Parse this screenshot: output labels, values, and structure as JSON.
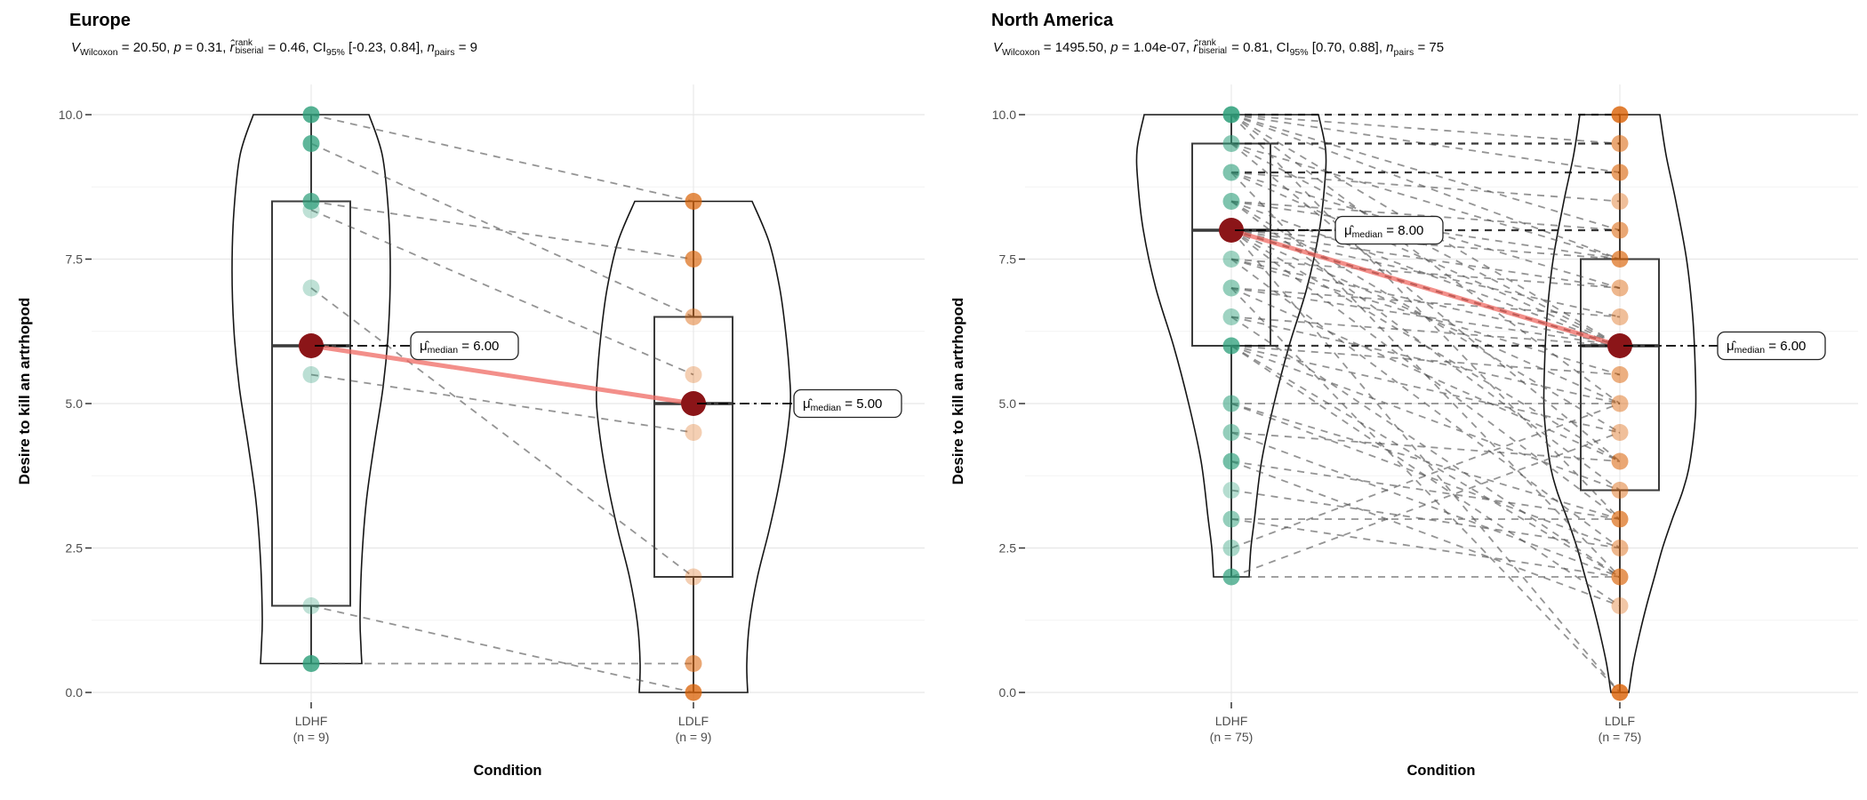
{
  "colors": {
    "group1": "#2a9d78",
    "group2": "#d95f02",
    "median_point": "#8b1518",
    "median_line": "#ef6a63",
    "pair_line": "#4d4d4d",
    "pair_line_dark": "#141414",
    "violin_outline": "#151515",
    "box_outline": "#3a3a3a",
    "grid_major": "#e7e7e7",
    "grid_minor": "#f4f4f4",
    "tick_text": "#4d4d4d",
    "connector": "#000000"
  },
  "axis": {
    "ylabel": "Desire to kill an artrhopod",
    "xlabel": "Condition",
    "yticks": [
      {
        "v": 0,
        "label": "0.0"
      },
      {
        "v": 2.5,
        "label": "2.5"
      },
      {
        "v": 5,
        "label": "5.0"
      },
      {
        "v": 7.5,
        "label": "7.5"
      },
      {
        "v": 10,
        "label": "10.0"
      }
    ],
    "yminor": [
      1.25,
      3.75,
      6.25,
      8.75
    ]
  },
  "chart_data": [
    {
      "type": "violin-box-paired",
      "title": "Europe",
      "subtitle_segments": [
        {
          "t": "V",
          "s": "i"
        },
        {
          "t": "Wilcoxon",
          "s": "sub"
        },
        {
          "t": " = 20.50, ",
          "s": "p"
        },
        {
          "t": "p",
          "s": "i"
        },
        {
          "t": " = 0.31, ",
          "s": "p"
        },
        {
          "t": "r̂",
          "s": "i"
        },
        {
          "s": "stack",
          "top": "rank",
          "bot": "biserial"
        },
        {
          "t": " = 0.46, CI",
          "s": "p"
        },
        {
          "t": "95%",
          "s": "sub"
        },
        {
          "t": " [-0.23, 0.84], ",
          "s": "p"
        },
        {
          "t": "n",
          "s": "i"
        },
        {
          "t": "pairs",
          "s": "sub"
        },
        {
          "t": " = 9",
          "s": "p"
        }
      ],
      "xlabel": "Condition",
      "ylabel": "Desire to kill an artrhopod",
      "ylim": [
        0,
        10
      ],
      "groups": [
        {
          "label": "LDHF",
          "sublabel": "(n = 9)",
          "n": 9,
          "color_key": "group1",
          "box": {
            "q1": 1.5,
            "median": 6,
            "q3": 8.5,
            "whisker_low": 0.5,
            "whisker_high": 10
          },
          "median_value": 6,
          "median_label": {
            "mu": "μ̂",
            "sub": "median",
            "value": " = 6.00"
          },
          "points": [
            [
              10,
              0.8
            ],
            [
              9.5,
              0.75
            ],
            [
              8.35,
              0.3
            ],
            [
              8.5,
              0.7
            ],
            [
              7,
              0.3
            ],
            [
              5.5,
              0.32
            ],
            [
              1.5,
              0.3
            ],
            [
              0.5,
              0.8
            ]
          ],
          "violin_profile": [
            [
              10,
              65
            ],
            [
              9.3,
              80
            ],
            [
              8.3,
              87
            ],
            [
              7.3,
              89
            ],
            [
              6.3,
              87
            ],
            [
              5.3,
              81
            ],
            [
              4.3,
              71
            ],
            [
              3.3,
              62
            ],
            [
              2.3,
              57
            ],
            [
              1.3,
              55
            ],
            [
              0.8,
              56
            ],
            [
              0.5,
              57
            ]
          ]
        },
        {
          "label": "LDLF",
          "sublabel": "(n = 9)",
          "n": 9,
          "color_key": "group2",
          "box": {
            "q1": 2,
            "median": 5,
            "q3": 6.5,
            "whisker_low": 0,
            "whisker_high": 8.5
          },
          "median_value": 5,
          "median_label": {
            "mu": "μ̂",
            "sub": "median",
            "value": " = 5.00"
          },
          "points": [
            [
              8.5,
              0.7
            ],
            [
              7.5,
              0.65
            ],
            [
              6.5,
              0.45
            ],
            [
              5.5,
              0.3
            ],
            [
              4.5,
              0.3
            ],
            [
              2,
              0.3
            ],
            [
              0.5,
              0.55
            ],
            [
              0,
              0.75
            ]
          ],
          "violin_profile": [
            [
              8.5,
              66
            ],
            [
              7.8,
              85
            ],
            [
              7,
              97
            ],
            [
              6.2,
              104
            ],
            [
              5.5,
              108
            ],
            [
              5,
              109
            ],
            [
              4.3,
              104
            ],
            [
              3.5,
              95
            ],
            [
              2.8,
              85
            ],
            [
              2,
              72
            ],
            [
              1.2,
              63
            ],
            [
              0.5,
              60
            ],
            [
              0,
              61
            ]
          ]
        }
      ],
      "pairs": [
        [
          10,
          8.5
        ],
        [
          9.5,
          6.5
        ],
        [
          8.5,
          7.5
        ],
        [
          8.35,
          5.5
        ],
        [
          7,
          2
        ],
        [
          5.5,
          4.5
        ],
        [
          1.5,
          0
        ],
        [
          0.5,
          0.5
        ]
      ],
      "median_pair": [
        6,
        5
      ]
    },
    {
      "type": "violin-box-paired",
      "title": "North America",
      "subtitle_segments": [
        {
          "t": "V",
          "s": "i"
        },
        {
          "t": "Wilcoxon",
          "s": "sub"
        },
        {
          "t": " = 1495.50, ",
          "s": "p"
        },
        {
          "t": "p",
          "s": "i"
        },
        {
          "t": " = 1.04e-07, ",
          "s": "p"
        },
        {
          "t": "r̂",
          "s": "i"
        },
        {
          "s": "stack",
          "top": "rank",
          "bot": "biserial"
        },
        {
          "t": " = 0.81, CI",
          "s": "p"
        },
        {
          "t": "95%",
          "s": "sub"
        },
        {
          "t": " [0.70, 0.88], ",
          "s": "p"
        },
        {
          "t": "n",
          "s": "i"
        },
        {
          "t": "pairs",
          "s": "sub"
        },
        {
          "t": " = 75",
          "s": "p"
        }
      ],
      "xlabel": "Condition",
      "ylabel": "Desire to kill an artrhopod",
      "ylim": [
        0,
        10
      ],
      "groups": [
        {
          "label": "LDHF",
          "sublabel": "(n = 75)",
          "n": 75,
          "color_key": "group1",
          "box": {
            "q1": 6,
            "median": 8,
            "q3": 9.5,
            "whisker_low": 2,
            "whisker_high": 10
          },
          "median_value": 8,
          "median_label": {
            "mu": "μ̂",
            "sub": "median",
            "value": " = 8.00"
          },
          "points": [
            [
              10,
              0.85
            ],
            [
              9.5,
              0.55
            ],
            [
              9,
              0.6
            ],
            [
              8.5,
              0.6
            ],
            [
              7.5,
              0.45
            ],
            [
              7,
              0.5
            ],
            [
              6.5,
              0.45
            ],
            [
              6,
              0.75
            ],
            [
              5,
              0.55
            ],
            [
              4.5,
              0.5
            ],
            [
              4,
              0.65
            ],
            [
              3.5,
              0.35
            ],
            [
              3,
              0.5
            ],
            [
              2.5,
              0.4
            ],
            [
              2,
              0.7
            ]
          ],
          "violin_profile": [
            [
              10,
              98
            ],
            [
              9.4,
              106
            ],
            [
              8.8,
              105
            ],
            [
              8,
              99
            ],
            [
              7,
              85
            ],
            [
              6,
              65
            ],
            [
              5,
              48
            ],
            [
              4,
              34
            ],
            [
              3,
              26
            ],
            [
              2.5,
              22
            ],
            [
              2,
              20
            ]
          ]
        },
        {
          "label": "LDLF",
          "sublabel": "(n = 75)",
          "n": 75,
          "color_key": "group2",
          "box": {
            "q1": 3.5,
            "median": 6,
            "q3": 7.5,
            "whisker_low": 0,
            "whisker_high": 10
          },
          "median_value": 6,
          "median_label": {
            "mu": "μ̂",
            "sub": "median",
            "value": " = 6.00"
          },
          "points": [
            [
              10,
              0.8
            ],
            [
              9.5,
              0.55
            ],
            [
              9,
              0.6
            ],
            [
              8.5,
              0.4
            ],
            [
              8,
              0.55
            ],
            [
              7.5,
              0.65
            ],
            [
              7,
              0.45
            ],
            [
              6.5,
              0.4
            ],
            [
              5.5,
              0.5
            ],
            [
              5,
              0.45
            ],
            [
              4.5,
              0.4
            ],
            [
              4,
              0.55
            ],
            [
              3.5,
              0.45
            ],
            [
              3,
              0.65
            ],
            [
              2.5,
              0.45
            ],
            [
              2,
              0.65
            ],
            [
              1.5,
              0.35
            ],
            [
              0,
              0.8
            ]
          ],
          "violin_profile": [
            [
              10,
              45
            ],
            [
              9.3,
              52
            ],
            [
              8.5,
              63
            ],
            [
              7.5,
              75
            ],
            [
              6.5,
              82
            ],
            [
              5.5,
              85
            ],
            [
              4.8,
              85
            ],
            [
              4,
              79
            ],
            [
              3.5,
              71
            ],
            [
              3,
              59
            ],
            [
              2.5,
              48
            ],
            [
              2,
              39
            ],
            [
              1.5,
              30
            ],
            [
              1,
              22
            ],
            [
              0.5,
              15
            ],
            [
              0.1,
              11
            ],
            [
              0,
              10
            ]
          ]
        }
      ],
      "pairs": [
        [
          10,
          10,
          1
        ],
        [
          10,
          9.5
        ],
        [
          10,
          9
        ],
        [
          10,
          8
        ],
        [
          10,
          7.5
        ],
        [
          10,
          6
        ],
        [
          10,
          5
        ],
        [
          10,
          3
        ],
        [
          9.5,
          9.5,
          1
        ],
        [
          9.5,
          7.5
        ],
        [
          9.5,
          6
        ],
        [
          9.5,
          4
        ],
        [
          9,
          9,
          1
        ],
        [
          9,
          8.5
        ],
        [
          9,
          7
        ],
        [
          9,
          6
        ],
        [
          9,
          2
        ],
        [
          8.5,
          8
        ],
        [
          8.5,
          7.5
        ],
        [
          8.5,
          6
        ],
        [
          8.5,
          4.5
        ],
        [
          8.5,
          3.5
        ],
        [
          8,
          8,
          1
        ],
        [
          8,
          7.5
        ],
        [
          8,
          7
        ],
        [
          8,
          6.5
        ],
        [
          8,
          6,
          1
        ],
        [
          8,
          5
        ],
        [
          8,
          4
        ],
        [
          8,
          3
        ],
        [
          8,
          0
        ],
        [
          7.5,
          7
        ],
        [
          7.5,
          6
        ],
        [
          7.5,
          5.5
        ],
        [
          7.5,
          2.5
        ],
        [
          7,
          6.5
        ],
        [
          7,
          6
        ],
        [
          7,
          4
        ],
        [
          7,
          0
        ],
        [
          6.5,
          6
        ],
        [
          6.5,
          5
        ],
        [
          6.5,
          2
        ],
        [
          6,
          6,
          1
        ],
        [
          6,
          5.5
        ],
        [
          6,
          4.5
        ],
        [
          6,
          3.5
        ],
        [
          6,
          2
        ],
        [
          6,
          1.5
        ],
        [
          5,
          5
        ],
        [
          5,
          3
        ],
        [
          5,
          2.5
        ],
        [
          4.5,
          4
        ],
        [
          4.5,
          2
        ],
        [
          4,
          3
        ],
        [
          4,
          1.5
        ],
        [
          3.5,
          2.5
        ],
        [
          3,
          3
        ],
        [
          3,
          2
        ],
        [
          2.5,
          5
        ],
        [
          2,
          4.5
        ],
        [
          2,
          2
        ]
      ],
      "median_pair": [
        8,
        6
      ]
    }
  ]
}
